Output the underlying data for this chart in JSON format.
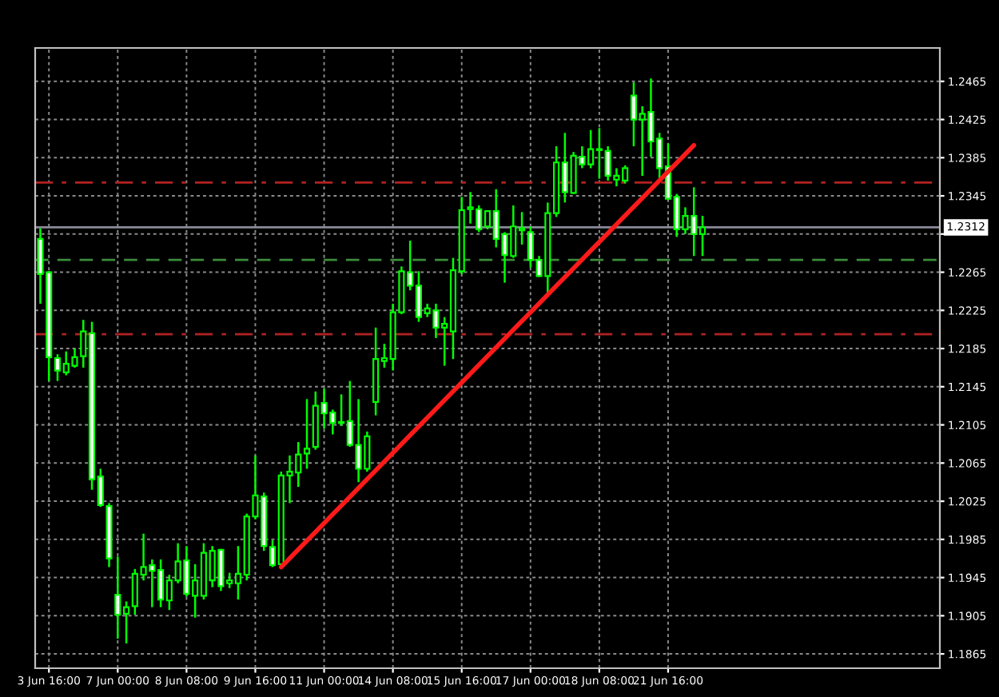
{
  "chart_data": {
    "type": "candlestick",
    "categories": [
      null,
      "3 Jun 16:00",
      null,
      null,
      null,
      null,
      null,
      null,
      null,
      "7 Jun 00:00",
      null,
      null,
      null,
      null,
      null,
      null,
      null,
      "8 Jun 08:00",
      null,
      null,
      null,
      null,
      null,
      null,
      null,
      "9 Jun 16:00",
      null,
      null,
      null,
      null,
      null,
      null,
      null,
      "11 Jun 00:00",
      null,
      null,
      null,
      null,
      null,
      null,
      null,
      "14 Jun 08:00",
      null,
      null,
      null,
      null,
      null,
      null,
      null,
      "15 Jun 16:00",
      null,
      null,
      null,
      null,
      null,
      null,
      null,
      "17 Jun 00:00",
      null,
      null,
      null,
      null,
      null,
      null,
      null,
      "18 Jun 08:00",
      null,
      null,
      null,
      null,
      null,
      null,
      null,
      "21 Jun 16:00",
      null,
      null,
      null,
      null,
      null,
      null,
      null,
      null,
      null,
      null,
      null,
      null,
      null,
      null,
      null,
      null,
      null,
      null,
      null,
      null,
      null,
      null,
      null,
      null,
      null,
      null,
      null,
      null,
      null,
      null,
      null
    ],
    "series": [
      {
        "type": "candlestick",
        "color": "#00ff00",
        "ohlc": [
          [
            1.23,
            1.2311,
            1.2232,
            1.2263
          ],
          [
            1.2265,
            1.2266,
            1.2151,
            1.2176
          ],
          [
            1.2175,
            1.2179,
            1.2151,
            1.2162
          ],
          [
            1.216,
            1.2182,
            1.2157,
            1.2169
          ],
          [
            1.2167,
            1.2185,
            1.2165,
            1.2176
          ],
          [
            1.2177,
            1.2215,
            1.2165,
            1.2203
          ],
          [
            1.2201,
            1.2213,
            1.2037,
            1.2048
          ],
          [
            1.2051,
            1.2059,
            1.2019,
            1.2021
          ],
          [
            1.202,
            1.2023,
            1.1956,
            1.1965
          ],
          [
            1.1927,
            1.1967,
            1.1881,
            1.1906
          ],
          [
            1.1907,
            1.192,
            1.1876,
            1.1914
          ],
          [
            1.1915,
            1.1954,
            1.1906,
            1.1949
          ],
          [
            1.1948,
            1.1991,
            1.1942,
            1.1956
          ],
          [
            1.1958,
            1.1964,
            1.1914,
            1.1952
          ],
          [
            1.1953,
            1.1964,
            1.1914,
            1.1922
          ],
          [
            1.1921,
            1.1948,
            1.1911,
            1.1942
          ],
          [
            1.1942,
            1.1981,
            1.1939,
            1.1962
          ],
          [
            1.1963,
            1.1978,
            1.1925,
            1.1928
          ],
          [
            1.1926,
            1.1959,
            1.1903,
            1.1942
          ],
          [
            1.1926,
            1.1981,
            1.1922,
            1.1971
          ],
          [
            1.1942,
            1.1978,
            1.1935,
            1.1973
          ],
          [
            1.1974,
            1.1975,
            1.1931,
            1.1936
          ],
          [
            1.1939,
            1.195,
            1.1934,
            1.1942
          ],
          [
            1.1939,
            1.1978,
            1.1922,
            1.1949
          ],
          [
            1.1948,
            1.2012,
            1.1942,
            1.2009
          ],
          [
            1.2009,
            1.2073,
            1.2006,
            1.2031
          ],
          [
            1.203,
            1.2034,
            1.1973,
            1.1978
          ],
          [
            1.1977,
            1.1984,
            1.1956,
            1.1958
          ],
          [
            1.1959,
            1.2056,
            1.1956,
            1.2052
          ],
          [
            1.2052,
            1.2073,
            1.2023,
            1.2056
          ],
          [
            1.2055,
            1.2087,
            1.204,
            1.2074
          ],
          [
            1.2075,
            1.2132,
            1.2059,
            1.208
          ],
          [
            1.2082,
            1.214,
            1.2079,
            1.2125
          ],
          [
            1.2128,
            1.2143,
            1.2101,
            1.2117
          ],
          [
            1.2118,
            1.2121,
            1.2095,
            1.2107
          ],
          [
            1.2107,
            1.2137,
            1.2104,
            1.2108
          ],
          [
            1.2109,
            1.2151,
            1.2082,
            1.2084
          ],
          [
            1.2084,
            1.2132,
            1.2045,
            1.2059
          ],
          [
            1.2059,
            1.2098,
            1.2056,
            1.2093
          ],
          [
            1.2129,
            1.2207,
            1.2115,
            1.2174
          ],
          [
            1.2172,
            1.219,
            1.2165,
            1.2175
          ],
          [
            1.2174,
            1.2232,
            1.2162,
            1.2223
          ],
          [
            1.2223,
            1.2271,
            1.2221,
            1.2266
          ],
          [
            1.2265,
            1.2298,
            1.2246,
            1.2251
          ],
          [
            1.2251,
            1.2266,
            1.2213,
            1.2218
          ],
          [
            1.2222,
            1.2232,
            1.2218,
            1.2227
          ],
          [
            1.2225,
            1.2232,
            1.2196,
            1.2207
          ],
          [
            1.2207,
            1.2218,
            1.2167,
            1.2211
          ],
          [
            1.2203,
            1.228,
            1.2174,
            1.2267
          ],
          [
            1.2266,
            1.2344,
            1.2263,
            1.233
          ],
          [
            1.2331,
            1.2349,
            1.2316,
            1.2333
          ],
          [
            1.2331,
            1.2335,
            1.2307,
            1.231
          ],
          [
            1.2313,
            1.233,
            1.231,
            1.2329
          ],
          [
            1.2329,
            1.2352,
            1.2291,
            1.23
          ],
          [
            1.2305,
            1.2307,
            1.2254,
            1.2283
          ],
          [
            1.2282,
            1.2335,
            1.228,
            1.2313
          ],
          [
            1.2309,
            1.2328,
            1.2294,
            1.2311
          ],
          [
            1.2307,
            1.2313,
            1.227,
            1.2278
          ],
          [
            1.2278,
            1.2282,
            1.226,
            1.2261
          ],
          [
            1.2261,
            1.2338,
            1.2243,
            1.2327
          ],
          [
            1.2327,
            1.2397,
            1.2323,
            1.238
          ],
          [
            1.238,
            1.2411,
            1.2338,
            1.2349
          ],
          [
            1.2348,
            1.2391,
            1.2347,
            1.2387
          ],
          [
            1.2386,
            1.2397,
            1.2374,
            1.2378
          ],
          [
            1.2378,
            1.2414,
            1.2374,
            1.2394
          ],
          [
            1.2393,
            1.2416,
            1.2363,
            1.2394
          ],
          [
            1.2392,
            1.2397,
            1.2361,
            1.2366
          ],
          [
            1.2362,
            1.2374,
            1.2355,
            1.2366
          ],
          [
            1.2361,
            1.2377,
            1.2358,
            1.2374
          ],
          [
            1.245,
            1.2464,
            1.2397,
            1.2425
          ],
          [
            1.2425,
            1.2439,
            1.2366,
            1.2431
          ],
          [
            1.2433,
            1.2468,
            1.2386,
            1.2402
          ],
          [
            1.2405,
            1.2411,
            1.2361,
            1.2374
          ],
          [
            1.2376,
            1.24,
            1.2341,
            1.2342
          ],
          [
            1.2344,
            1.2347,
            1.2302,
            1.231
          ],
          [
            1.231,
            1.2333,
            1.2305,
            1.2324
          ],
          [
            1.2324,
            1.2354,
            1.2282,
            1.2305
          ],
          [
            1.2305,
            1.2324,
            1.2282,
            1.2312
          ],
          null,
          null,
          null,
          null,
          null,
          null,
          null,
          null,
          null,
          null,
          null,
          null,
          null,
          null,
          null,
          null,
          null,
          null,
          null,
          null,
          null,
          null,
          null,
          null,
          null,
          null,
          null
        ]
      },
      {
        "type": "line",
        "color": "#ff1a1a",
        "values": [
          null,
          null,
          null,
          null,
          null,
          null,
          null,
          null,
          null,
          null,
          null,
          null,
          null,
          null,
          null,
          null,
          null,
          null,
          null,
          null,
          null,
          null,
          null,
          null,
          null,
          null,
          null,
          null,
          1.1956,
          null,
          null,
          null,
          null,
          null,
          null,
          null,
          null,
          null,
          null,
          null,
          null,
          null,
          null,
          null,
          null,
          null,
          null,
          null,
          null,
          null,
          null,
          null,
          null,
          null,
          null,
          null,
          null,
          null,
          null,
          null,
          null,
          null,
          null,
          null,
          null,
          null,
          null,
          null,
          null,
          null,
          null,
          null,
          null,
          null,
          null,
          null,
          1.2398,
          null,
          null,
          null,
          null,
          null,
          null,
          null,
          null,
          null,
          null,
          null,
          null,
          null,
          null,
          null,
          null,
          null,
          null,
          null,
          null,
          null,
          null,
          null,
          null,
          null,
          null,
          null,
          null
        ]
      }
    ],
    "ylim": [
      1.185,
      1.25
    ],
    "yticks": [
      1.1865,
      1.1905,
      1.1945,
      1.1985,
      1.2025,
      1.2065,
      1.2105,
      1.2145,
      1.2185,
      1.2225,
      1.2265,
      {
        "value": 1.2305,
        "label": null
      },
      1.2345,
      1.2385,
      1.2425,
      1.2465
    ],
    "ref_lines": [
      {
        "axis": "y",
        "value": 1.2359,
        "color": "#b22222",
        "line_style": "dashdot"
      },
      {
        "axis": "y",
        "value": 1.22,
        "color": "#b22222",
        "line_style": "dashdot"
      },
      {
        "axis": "y",
        "value": 1.2278,
        "color": "#3c8c3c",
        "line_style": "dashed"
      },
      {
        "axis": "y",
        "value": 1.2312,
        "color": "#8a8a9a",
        "line_style": "solid",
        "label": "1.2312"
      }
    ],
    "grid": true
  }
}
